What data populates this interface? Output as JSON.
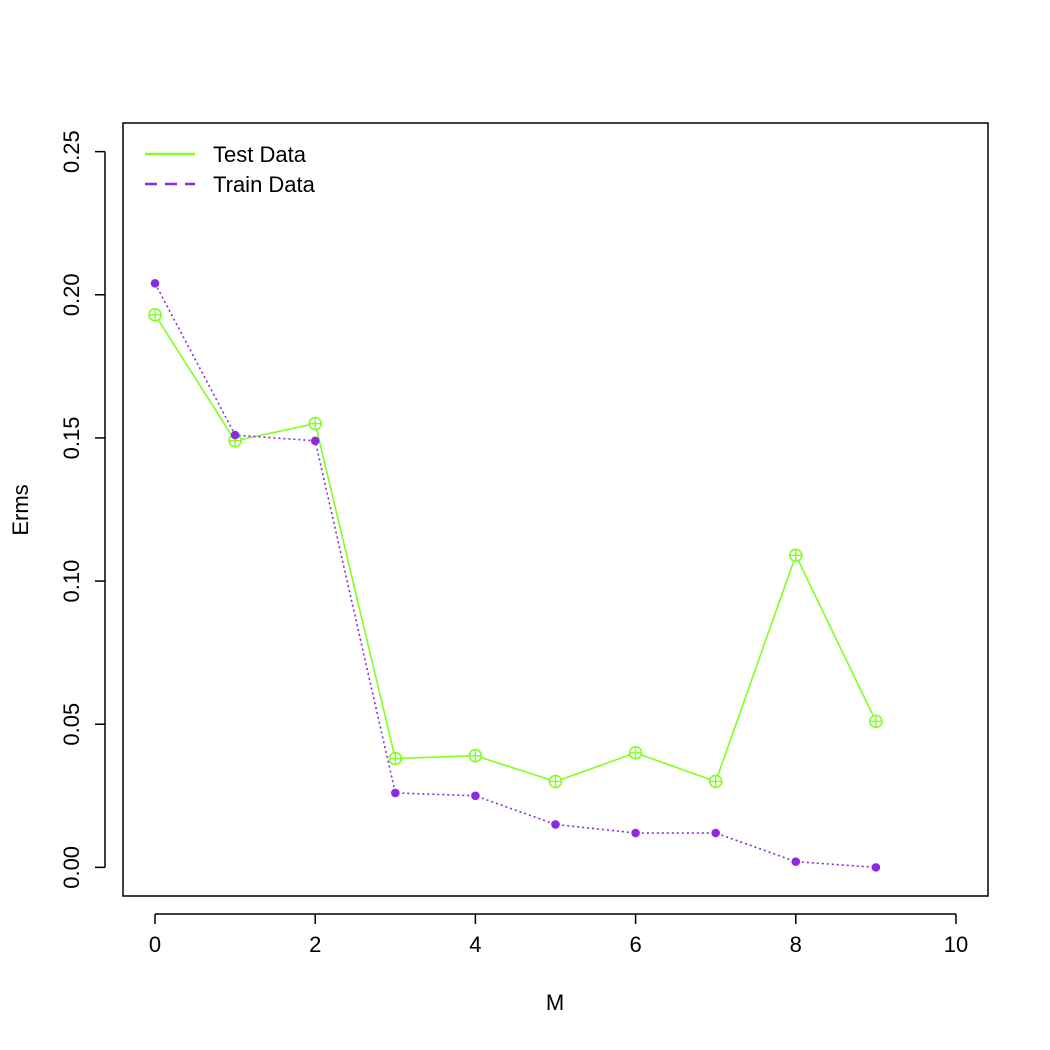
{
  "chart_data": {
    "type": "line",
    "xlabel": "M",
    "ylabel": "Erms",
    "xlim": [
      -0.4,
      10.4
    ],
    "ylim": [
      -0.01,
      0.26
    ],
    "x_ticks": [
      0,
      2,
      4,
      6,
      8,
      10
    ],
    "y_ticks": [
      0.0,
      0.05,
      0.1,
      0.15,
      0.2,
      0.25
    ],
    "x_tick_labels": [
      "0",
      "2",
      "4",
      "6",
      "8",
      "10"
    ],
    "y_tick_labels": [
      "0.00",
      "0.05",
      "0.10",
      "0.15",
      "0.20",
      "0.25"
    ],
    "legend_position": "top-left",
    "grid": false,
    "series": [
      {
        "name": "Test Data",
        "color": "#80ff20",
        "line_style": "solid",
        "marker": "circle-plus",
        "x": [
          0,
          1,
          2,
          3,
          4,
          5,
          6,
          7,
          8,
          9
        ],
        "y": [
          0.193,
          0.149,
          0.155,
          0.038,
          0.039,
          0.03,
          0.04,
          0.03,
          0.109,
          0.051
        ]
      },
      {
        "name": "Train Data",
        "color": "#8a2be2",
        "line_style": "dotted",
        "legend_line_style": "dashed",
        "marker": "filled-circle",
        "x": [
          0,
          1,
          2,
          3,
          4,
          5,
          6,
          7,
          8,
          9
        ],
        "y": [
          0.204,
          0.151,
          0.149,
          0.026,
          0.025,
          0.015,
          0.012,
          0.012,
          0.002,
          0.0
        ]
      }
    ]
  }
}
